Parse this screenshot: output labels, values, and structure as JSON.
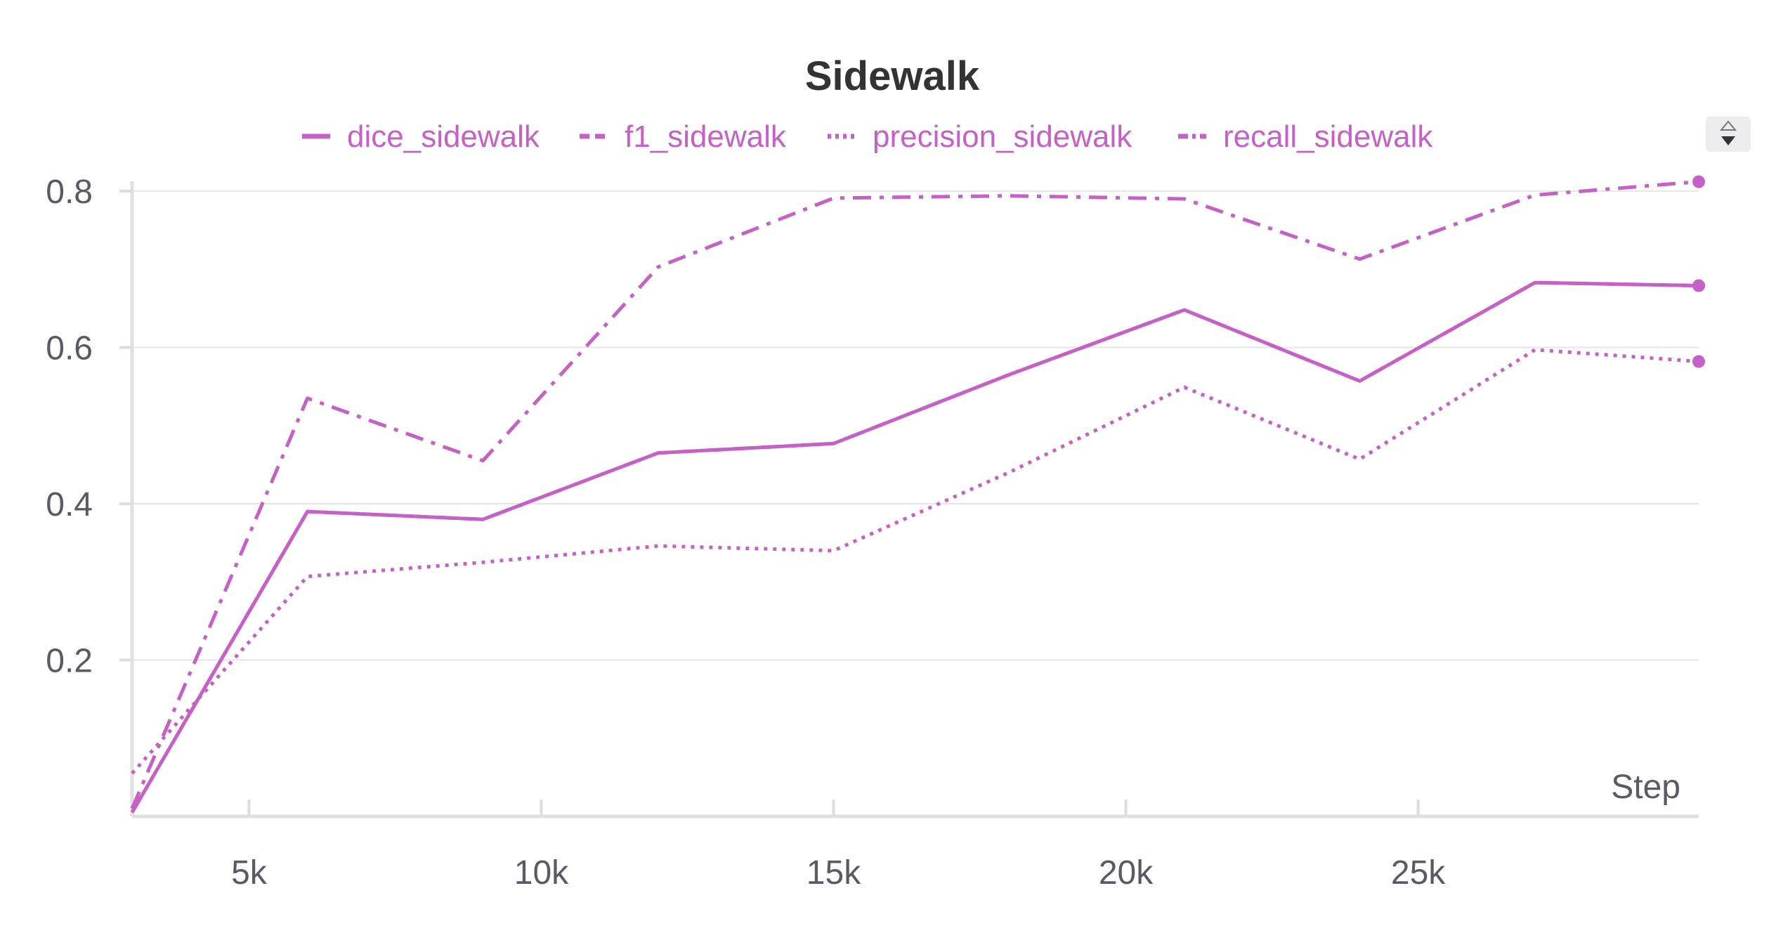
{
  "chart_data": {
    "type": "line",
    "title": "Sidewalk",
    "xlabel": "Step",
    "ylabel": "",
    "xlim": [
      3000,
      29800
    ],
    "ylim": [
      0,
      0.82
    ],
    "x_ticks": [
      5000,
      10000,
      15000,
      20000,
      25000
    ],
    "x_tick_labels": [
      "5k",
      "10k",
      "15k",
      "20k",
      "25k"
    ],
    "y_ticks": [
      0.2,
      0.4,
      0.6,
      0.8
    ],
    "y_tick_labels": [
      "0.2",
      "0.4",
      "0.6",
      "0.8"
    ],
    "grid": true,
    "legend_position": "top",
    "color": "#c660c6",
    "series": [
      {
        "name": "dice_sidewalk",
        "dash": "solid",
        "x": [
          3000,
          6000,
          9000,
          12000,
          15000,
          18000,
          21000,
          24000,
          27000,
          29800
        ],
        "y": [
          0.005,
          0.39,
          0.38,
          0.465,
          0.477,
          0.565,
          0.648,
          0.557,
          0.683,
          0.679
        ]
      },
      {
        "name": "f1_sidewalk",
        "dash": "dashed",
        "x": [
          3000,
          6000,
          9000,
          12000,
          15000,
          18000,
          21000,
          24000,
          27000,
          29800
        ],
        "y": [
          0.005,
          0.39,
          0.38,
          0.465,
          0.477,
          0.565,
          0.648,
          0.557,
          0.683,
          0.679
        ]
      },
      {
        "name": "precision_sidewalk",
        "dash": "dotted",
        "x": [
          3000,
          6000,
          9000,
          12000,
          15000,
          18000,
          21000,
          24000,
          27000,
          29800
        ],
        "y": [
          0.055,
          0.307,
          0.325,
          0.346,
          0.34,
          0.44,
          0.549,
          0.457,
          0.597,
          0.582
        ]
      },
      {
        "name": "recall_sidewalk",
        "dash": "dashdot",
        "x": [
          3000,
          6000,
          9000,
          12000,
          15000,
          18000,
          21000,
          24000,
          27000,
          29800
        ],
        "y": [
          0.01,
          0.535,
          0.455,
          0.703,
          0.791,
          0.794,
          0.79,
          0.713,
          0.795,
          0.812
        ]
      }
    ]
  },
  "legend_scroll_icon": "up-down-arrows-icon"
}
